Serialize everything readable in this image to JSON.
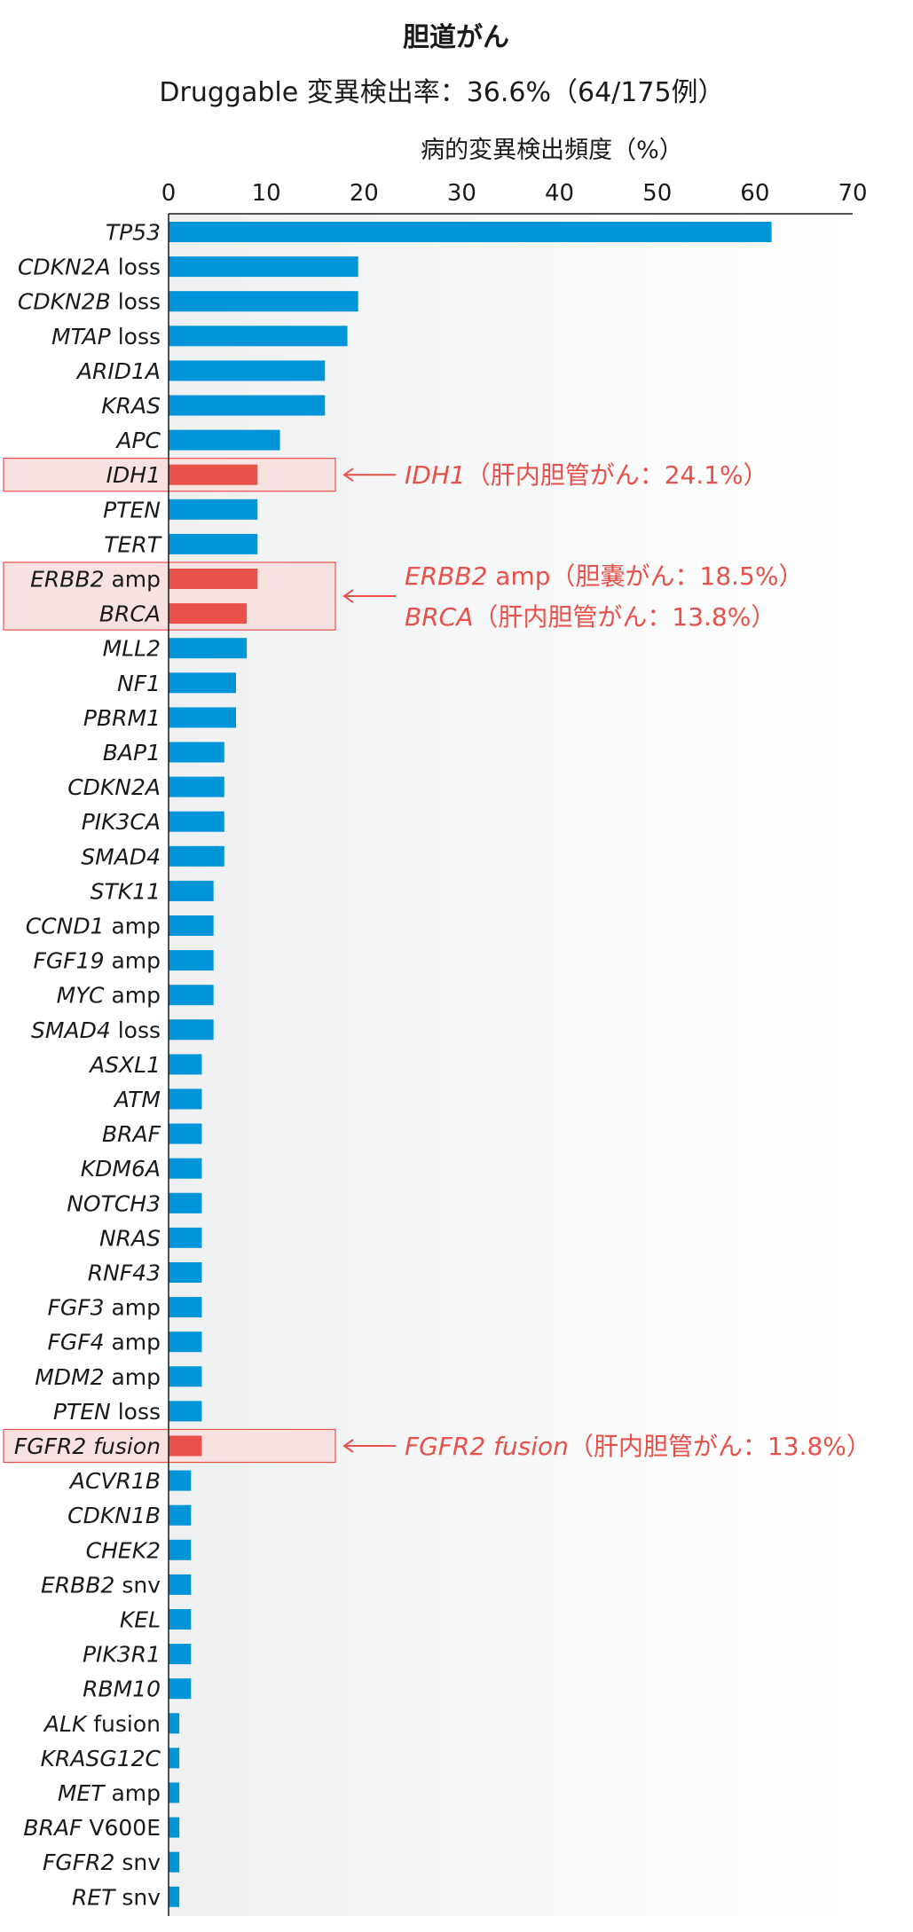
{
  "chart_data": {
    "type": "bar",
    "orientation": "horizontal",
    "title": "胆道がん",
    "subtitle": "Druggable 変異検出率：36.6%（64/175例）",
    "xlabel": "病的変異検出頻度（%）",
    "xlim": [
      0,
      70
    ],
    "xticks": [
      "0",
      "10",
      "20",
      "30",
      "40",
      "50",
      "60",
      "70"
    ],
    "grid": false,
    "categories": [
      {
        "gene": "TP53",
        "suffix": ""
      },
      {
        "gene": "CDKN2A",
        "suffix": " loss"
      },
      {
        "gene": "CDKN2B",
        "suffix": " loss"
      },
      {
        "gene": "MTAP",
        "suffix": " loss"
      },
      {
        "gene": "ARID1A",
        "suffix": ""
      },
      {
        "gene": "KRAS",
        "suffix": ""
      },
      {
        "gene": "APC",
        "suffix": ""
      },
      {
        "gene": "IDH1",
        "suffix": ""
      },
      {
        "gene": "PTEN",
        "suffix": ""
      },
      {
        "gene": "TERT",
        "suffix": ""
      },
      {
        "gene": "ERBB2",
        "suffix": " amp"
      },
      {
        "gene": "BRCA",
        "suffix": ""
      },
      {
        "gene": "MLL2",
        "suffix": ""
      },
      {
        "gene": "NF1",
        "suffix": ""
      },
      {
        "gene": "PBRM1",
        "suffix": ""
      },
      {
        "gene": "BAP1",
        "suffix": ""
      },
      {
        "gene": "CDKN2A",
        "suffix": ""
      },
      {
        "gene": "PIK3CA",
        "suffix": ""
      },
      {
        "gene": "SMAD4",
        "suffix": ""
      },
      {
        "gene": "STK11",
        "suffix": ""
      },
      {
        "gene": "CCND1",
        "suffix": " amp"
      },
      {
        "gene": "FGF19",
        "suffix": " amp"
      },
      {
        "gene": "MYC",
        "suffix": " amp"
      },
      {
        "gene": "SMAD4",
        "suffix": " loss"
      },
      {
        "gene": "ASXL1",
        "suffix": ""
      },
      {
        "gene": "ATM",
        "suffix": ""
      },
      {
        "gene": "BRAF",
        "suffix": ""
      },
      {
        "gene": "KDM6A",
        "suffix": ""
      },
      {
        "gene": "NOTCH3",
        "suffix": ""
      },
      {
        "gene": "NRAS",
        "suffix": ""
      },
      {
        "gene": "RNF43",
        "suffix": ""
      },
      {
        "gene": "FGF3",
        "suffix": " amp"
      },
      {
        "gene": "FGF4",
        "suffix": " amp"
      },
      {
        "gene": "MDM2",
        "suffix": " amp"
      },
      {
        "gene": "PTEN",
        "suffix": " loss"
      },
      {
        "gene": "FGFR2 fusion",
        "suffix": ""
      },
      {
        "gene": "ACVR1B",
        "suffix": ""
      },
      {
        "gene": "CDKN1B",
        "suffix": ""
      },
      {
        "gene": "CHEK2",
        "suffix": ""
      },
      {
        "gene": "ERBB2",
        "suffix": " snv"
      },
      {
        "gene": "KEL",
        "suffix": ""
      },
      {
        "gene": "PIK3R1",
        "suffix": ""
      },
      {
        "gene": "RBM10",
        "suffix": ""
      },
      {
        "gene": "ALK",
        "suffix": " fusion"
      },
      {
        "gene": "KRASG12C",
        "suffix": ""
      },
      {
        "gene": "MET",
        "suffix": " amp"
      },
      {
        "gene": "BRAF",
        "suffix": " V600E"
      },
      {
        "gene": "FGFR2",
        "suffix": " snv"
      },
      {
        "gene": "RET",
        "suffix": " snv"
      }
    ],
    "values": [
      61.7,
      19.4,
      19.4,
      18.3,
      16.0,
      16.0,
      11.4,
      9.1,
      9.1,
      9.1,
      9.1,
      8.0,
      8.0,
      6.9,
      6.9,
      5.7,
      5.7,
      5.7,
      5.7,
      4.6,
      4.6,
      4.6,
      4.6,
      4.6,
      3.4,
      3.4,
      3.4,
      3.4,
      3.4,
      3.4,
      3.4,
      3.4,
      3.4,
      3.4,
      3.4,
      3.4,
      2.3,
      2.3,
      2.3,
      2.3,
      2.3,
      2.3,
      2.3,
      1.1,
      1.1,
      1.1,
      1.1,
      1.1,
      1.1
    ],
    "highlighted": [
      7,
      10,
      11,
      35
    ],
    "colors": {
      "bar": "#0095d9",
      "highlight_bar": "#e8504a",
      "highlight_box_fill": "#f7e1e1",
      "highlight_box_stroke": "#e8504a",
      "annotation": "#e8504a",
      "plot_bg_start": "#eef0f1",
      "plot_bg_end": "#ffffff"
    },
    "annotations": [
      {
        "target": [
          7
        ],
        "lines": [
          {
            "gene": "IDH1",
            "text": "（肝内胆管がん：24.1%）"
          }
        ]
      },
      {
        "target": [
          10,
          11
        ],
        "lines": [
          {
            "gene": "ERBB2",
            "text": " amp（胆嚢がん：18.5%）"
          },
          {
            "gene": "BRCA",
            "text": "（肝内胆管がん：13.8%）"
          }
        ]
      },
      {
        "target": [
          35
        ],
        "lines": [
          {
            "gene": "FGFR2 fusion",
            "text": "（肝内胆管がん：13.8%）"
          }
        ]
      }
    ]
  }
}
